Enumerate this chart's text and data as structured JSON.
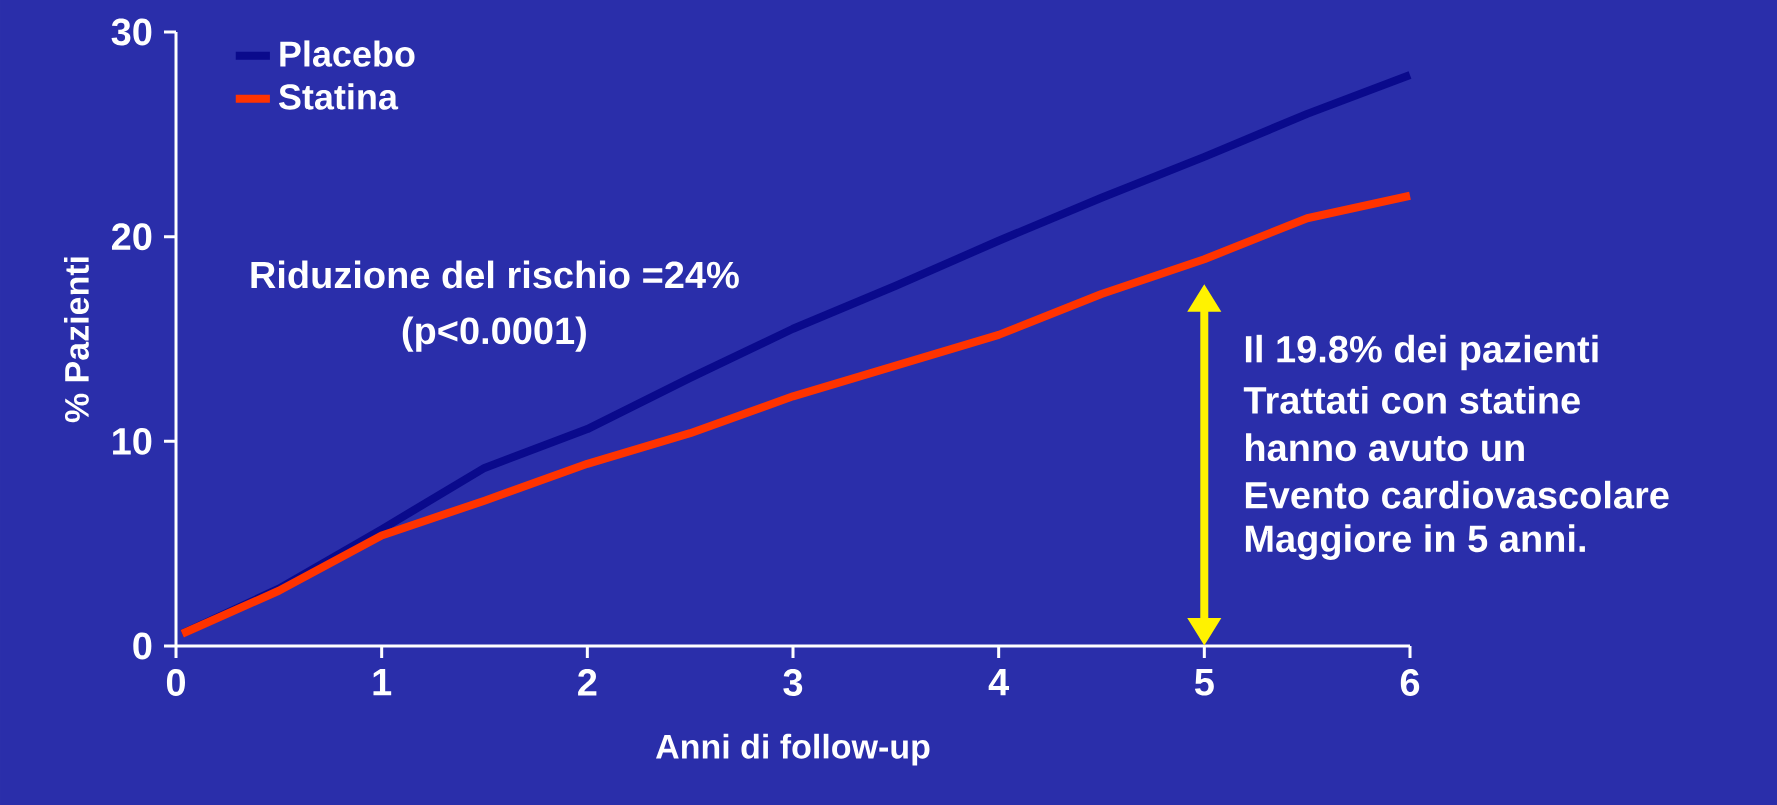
{
  "chart_data": {
    "type": "line",
    "xlabel": "Anni di follow-up",
    "ylabel": "% Pazienti",
    "series": [
      {
        "name": "Placebo",
        "color": "#0a0a8c",
        "x": [
          0.03,
          0.5,
          1,
          1.5,
          2,
          2.5,
          3,
          3.5,
          4,
          4.5,
          5,
          5.5,
          6
        ],
        "values": [
          0.6,
          2.8,
          5.7,
          8.7,
          10.6,
          13.1,
          15.5,
          17.6,
          19.8,
          21.9,
          23.9,
          26.0,
          27.9
        ]
      },
      {
        "name": "Statina",
        "color": "#ff3300",
        "x": [
          0.03,
          0.5,
          1,
          1.5,
          2,
          2.5,
          3,
          3.5,
          4,
          4.5,
          5,
          5.5,
          6
        ],
        "values": [
          0.6,
          2.7,
          5.4,
          7.1,
          8.9,
          10.4,
          12.2,
          13.7,
          15.2,
          17.2,
          18.9,
          20.9,
          22.0
        ]
      }
    ],
    "xlim": [
      0,
      6
    ],
    "ylim": [
      0,
      30
    ],
    "xticks": [
      0,
      1,
      2,
      3,
      4,
      5,
      6
    ],
    "yticks": [
      0,
      10,
      20,
      30
    ],
    "legend": "top left",
    "grid": false,
    "marker": "none",
    "line_style": "solid",
    "annotations": [
      "Riduzione del rischio =24%",
      "(p<0.0001)",
      "Il 19.8% dei pazienti",
      "Trattati con statine",
      "hanno avuto un",
      "Evento cardiovascolare",
      "Maggiore in 5 anni."
    ]
  }
}
